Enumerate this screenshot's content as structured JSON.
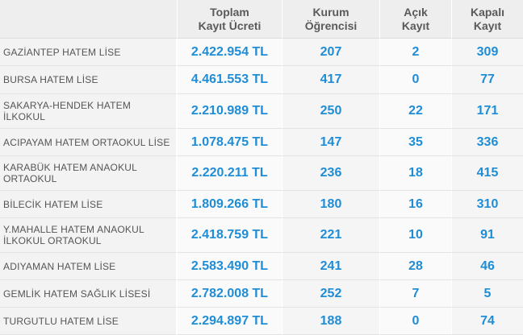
{
  "header": {
    "school": "",
    "fee": "Toplam\nKayıt Ücreti",
    "students": "Kurum\nÖğrencisi",
    "open": "Açık\nKayıt",
    "closed": "Kapalı\nKayıt"
  },
  "rows": [
    {
      "name": "GAZİANTEP HATEM LİSE",
      "fee": "2.422.954 TL",
      "students": "207",
      "open": "2",
      "closed": "309"
    },
    {
      "name": "BURSA HATEM LİSE",
      "fee": "4.461.553 TL",
      "students": "417",
      "open": "0",
      "closed": "77"
    },
    {
      "name": "SAKARYA-HENDEK HATEM İLKOKUL",
      "fee": "2.210.989 TL",
      "students": "250",
      "open": "22",
      "closed": "171"
    },
    {
      "name": "ACIPAYAM HATEM ORTAOKUL LİSE",
      "fee": "1.078.475 TL",
      "students": "147",
      "open": "35",
      "closed": "336"
    },
    {
      "name": "KARABÜK HATEM ANAOKUL ORTAOKUL",
      "fee": "2.220.211 TL",
      "students": "236",
      "open": "18",
      "closed": "415"
    },
    {
      "name": "BİLECİK HATEM LİSE",
      "fee": "1.809.266 TL",
      "students": "180",
      "open": "16",
      "closed": "310"
    },
    {
      "name": "Y.MAHALLE HATEM ANAOKUL İLKOKUL ORTAOKUL",
      "fee": "2.418.759 TL",
      "students": "221",
      "open": "10",
      "closed": "91"
    },
    {
      "name": "ADIYAMAN HATEM LİSE",
      "fee": "2.583.490 TL",
      "students": "241",
      "open": "28",
      "closed": "46"
    },
    {
      "name": "GEMLİK HATEM SAĞLIK LİSESİ",
      "fee": "2.782.008 TL",
      "students": "252",
      "open": "7",
      "closed": "5"
    },
    {
      "name": "TURGUTLU HATEM LİSE",
      "fee": "2.294.897 TL",
      "students": "188",
      "open": "0",
      "closed": "74"
    }
  ],
  "colors": {
    "value_blue": "#1f8dd6",
    "header_bg": "#eeeeee",
    "name_text": "#555555"
  }
}
